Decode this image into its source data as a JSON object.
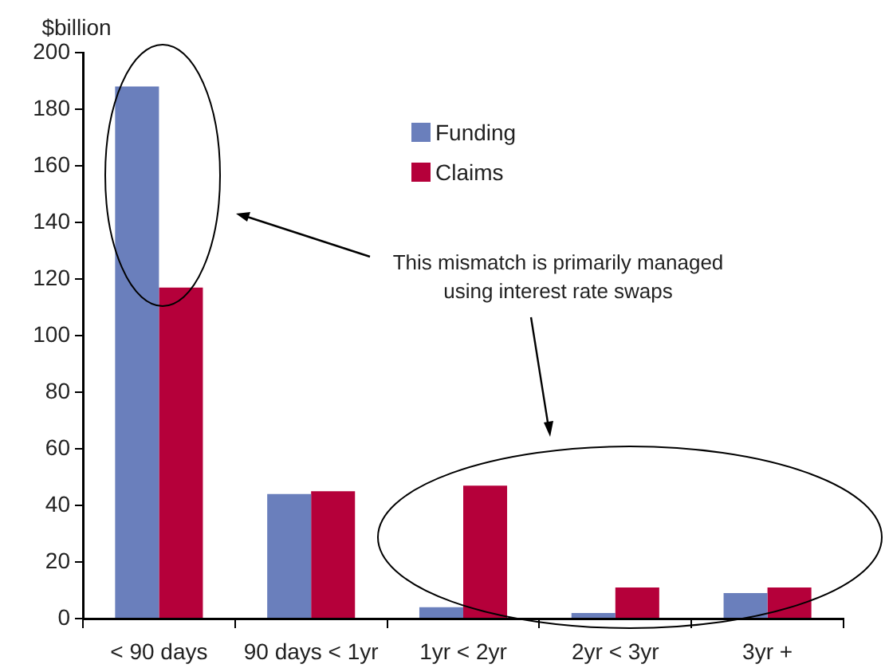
{
  "chart_data": {
    "type": "bar",
    "ylabel": "$billion",
    "categories": [
      "< 90 days",
      "90 days < 1yr",
      "1yr < 2yr",
      "2yr < 3yr",
      "3yr +"
    ],
    "series": [
      {
        "name": "Funding",
        "color": "#6a7fbc",
        "values": [
          188,
          44,
          4,
          2,
          9
        ]
      },
      {
        "name": "Claims",
        "color": "#b5003a",
        "values": [
          117,
          45,
          47,
          11,
          11
        ]
      }
    ],
    "ylim": [
      0,
      200
    ],
    "yticks": [
      0,
      20,
      40,
      60,
      80,
      100,
      120,
      140,
      160,
      180,
      200
    ],
    "grid": false,
    "legend": "top",
    "annotations": [
      "This mismatch is primarily managed using interest rate swaps"
    ]
  }
}
